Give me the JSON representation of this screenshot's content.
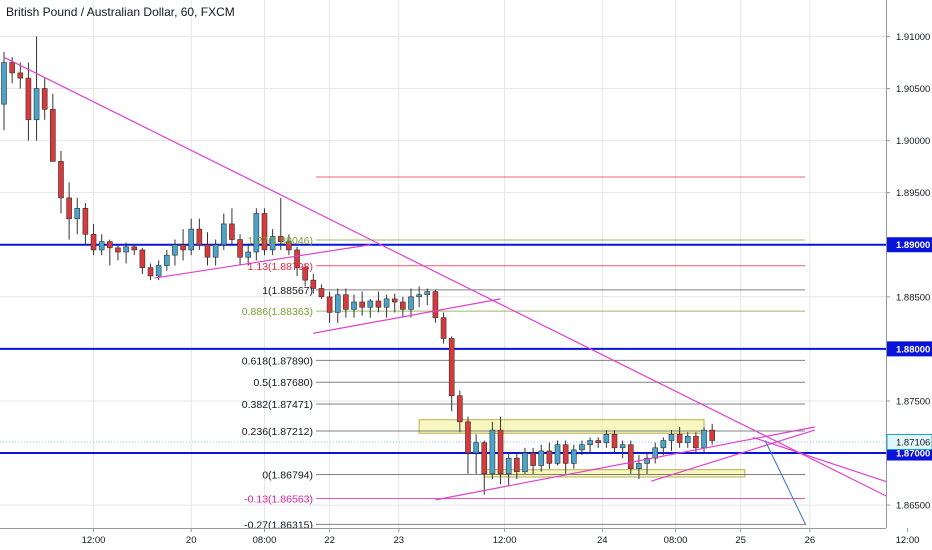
{
  "chart_data": {
    "type": "candlestick",
    "title": "British Pound / Australian Dollar, 60, FXCM",
    "colors": {
      "up": "#4aa3c8",
      "down": "#d9393b",
      "trendline": "#e040d0",
      "level": "#0a14d8",
      "grid": "#e6e6e6",
      "fib_line": "#555555",
      "fib_ext_green": "#7ba233",
      "fib_ext_red": "#e8253f",
      "fib_neg": "#e020a0",
      "zone": "#f3f08a",
      "projection": "#3a6fd8",
      "current_price": "#19a5c2"
    },
    "y_axis": {
      "ylim": [
        1.8628,
        1.9135
      ],
      "ticks": [
        {
          "value": 1.91,
          "label": "1.91000"
        },
        {
          "value": 1.905,
          "label": "1.90500"
        },
        {
          "value": 1.9,
          "label": "1.90000"
        },
        {
          "value": 1.895,
          "label": "1.89500"
        },
        {
          "value": 1.885,
          "label": "1.88500"
        },
        {
          "value": 1.875,
          "label": "1.87500"
        },
        {
          "value": 1.865,
          "label": "1.86500"
        }
      ],
      "highlighted": [
        {
          "value": 1.89,
          "label": "1.89000"
        },
        {
          "value": 1.88,
          "label": "1.88000"
        },
        {
          "value": 1.87,
          "label": "1.87000"
        }
      ],
      "current_price": {
        "value": 1.87106,
        "label": "1.87106"
      }
    },
    "x_axis": {
      "ticks": [
        {
          "bar": 11,
          "label": "12:00"
        },
        {
          "bar": 23,
          "label": "20"
        },
        {
          "bar": 32,
          "label": "08:00"
        },
        {
          "bar": 40,
          "label": "22"
        },
        {
          "bar": 48.5,
          "label": "23"
        },
        {
          "bar": 61.5,
          "label": "12:00"
        },
        {
          "bar": 73.5,
          "label": "24"
        },
        {
          "bar": 82.5,
          "label": "08:00"
        },
        {
          "bar": 90.5,
          "label": "25"
        },
        {
          "bar": 99,
          "label": "26"
        },
        {
          "bar": 111,
          "label": "12:00"
        }
      ]
    },
    "candles": [
      [
        1.9035,
        1.9085,
        1.901,
        1.9075
      ],
      [
        1.9075,
        1.908,
        1.9055,
        1.9065
      ],
      [
        1.9065,
        1.9075,
        1.905,
        1.906
      ],
      [
        1.906,
        1.9075,
        1.9,
        1.902
      ],
      [
        1.902,
        1.91,
        1.9,
        1.905
      ],
      [
        1.905,
        1.906,
        1.902,
        1.903
      ],
      [
        1.903,
        1.9045,
        1.898,
        1.898
      ],
      [
        1.898,
        1.899,
        1.893,
        1.8945
      ],
      [
        1.8945,
        1.896,
        1.8905,
        1.8925
      ],
      [
        1.8925,
        1.8945,
        1.891,
        1.8935
      ],
      [
        1.8935,
        1.894,
        1.89,
        1.891
      ],
      [
        1.891,
        1.892,
        1.889,
        1.8895
      ],
      [
        1.8895,
        1.891,
        1.889,
        1.8903
      ],
      [
        1.8903,
        1.8905,
        1.888,
        1.8897
      ],
      [
        1.8897,
        1.89,
        1.8885,
        1.8893
      ],
      [
        1.8893,
        1.8902,
        1.8882,
        1.8898
      ],
      [
        1.8898,
        1.89,
        1.889,
        1.8895
      ],
      [
        1.8895,
        1.8897,
        1.8872,
        1.8878
      ],
      [
        1.8878,
        1.8882,
        1.8866,
        1.887
      ],
      [
        1.887,
        1.8885,
        1.8866,
        1.888
      ],
      [
        1.888,
        1.8895,
        1.8875,
        1.889
      ],
      [
        1.889,
        1.8905,
        1.888,
        1.89
      ],
      [
        1.89,
        1.8915,
        1.8885,
        1.8895
      ],
      [
        1.8895,
        1.8925,
        1.889,
        1.8915
      ],
      [
        1.8915,
        1.8925,
        1.8895,
        1.89
      ],
      [
        1.89,
        1.8912,
        1.888,
        1.8888
      ],
      [
        1.8888,
        1.8905,
        1.888,
        1.89
      ],
      [
        1.89,
        1.893,
        1.8895,
        1.892
      ],
      [
        1.892,
        1.8935,
        1.89,
        1.8905
      ],
      [
        1.8905,
        1.891,
        1.888,
        1.8888
      ],
      [
        1.8888,
        1.89,
        1.888,
        1.8893
      ],
      [
        1.8893,
        1.8935,
        1.8885,
        1.893
      ],
      [
        1.893,
        1.8935,
        1.889,
        1.8895
      ],
      [
        1.8895,
        1.8915,
        1.889,
        1.8908
      ],
      [
        1.8908,
        1.8945,
        1.8895,
        1.8903
      ],
      [
        1.8903,
        1.891,
        1.889,
        1.8895
      ],
      [
        1.8895,
        1.8898,
        1.887,
        1.8878
      ],
      [
        1.8878,
        1.8882,
        1.886,
        1.8866
      ],
      [
        1.8866,
        1.8872,
        1.8853,
        1.8858
      ],
      [
        1.8858,
        1.8862,
        1.8848,
        1.885
      ],
      [
        1.885,
        1.8855,
        1.8825,
        1.8835
      ],
      [
        1.8835,
        1.8858,
        1.8825,
        1.8852
      ],
      [
        1.8852,
        1.8858,
        1.883,
        1.8838
      ],
      [
        1.8838,
        1.8852,
        1.883,
        1.8845
      ],
      [
        1.8845,
        1.8855,
        1.8832,
        1.884
      ],
      [
        1.884,
        1.8848,
        1.883,
        1.8846
      ],
      [
        1.8846,
        1.8855,
        1.8835,
        1.884
      ],
      [
        1.884,
        1.8852,
        1.883,
        1.8848
      ],
      [
        1.8848,
        1.8853,
        1.8835,
        1.8845
      ],
      [
        1.8845,
        1.885,
        1.883,
        1.8838
      ],
      [
        1.8838,
        1.8858,
        1.883,
        1.885
      ],
      [
        1.885,
        1.886,
        1.884,
        1.8852
      ],
      [
        1.8852,
        1.8858,
        1.8842,
        1.8855
      ],
      [
        1.8855,
        1.8857,
        1.8825,
        1.883
      ],
      [
        1.883,
        1.8835,
        1.8805,
        1.881
      ],
      [
        1.881,
        1.8812,
        1.874,
        1.8755
      ],
      [
        1.8755,
        1.876,
        1.872,
        1.873
      ],
      [
        1.873,
        1.8735,
        1.868,
        1.87
      ],
      [
        1.87,
        1.8718,
        1.868,
        1.871
      ],
      [
        1.871,
        1.8712,
        1.866,
        1.868
      ],
      [
        1.868,
        1.873,
        1.8675,
        1.8722
      ],
      [
        1.8722,
        1.8735,
        1.867,
        1.868
      ],
      [
        1.868,
        1.87,
        1.8668,
        1.8695
      ],
      [
        1.8695,
        1.87,
        1.8675,
        1.8682
      ],
      [
        1.8682,
        1.8705,
        1.868,
        1.87
      ],
      [
        1.87,
        1.8705,
        1.868,
        1.8688
      ],
      [
        1.8688,
        1.8708,
        1.8682,
        1.8702
      ],
      [
        1.8702,
        1.871,
        1.8685,
        1.869
      ],
      [
        1.869,
        1.8712,
        1.8688,
        1.8708
      ],
      [
        1.8708,
        1.8712,
        1.868,
        1.869
      ],
      [
        1.869,
        1.8708,
        1.8685,
        1.8703
      ],
      [
        1.8703,
        1.8712,
        1.8698,
        1.8708
      ],
      [
        1.8708,
        1.8715,
        1.87,
        1.8712
      ],
      [
        1.8712,
        1.8715,
        1.8705,
        1.871
      ],
      [
        1.871,
        1.8722,
        1.8705,
        1.8718
      ],
      [
        1.8718,
        1.8722,
        1.87,
        1.8705
      ],
      [
        1.8705,
        1.8712,
        1.8695,
        1.8708
      ],
      [
        1.8708,
        1.8712,
        1.868,
        1.8685
      ],
      [
        1.8685,
        1.8698,
        1.8675,
        1.869
      ],
      [
        1.869,
        1.87,
        1.868,
        1.8695
      ],
      [
        1.8695,
        1.871,
        1.869,
        1.8705
      ],
      [
        1.8705,
        1.8715,
        1.8698,
        1.8712
      ],
      [
        1.8712,
        1.8722,
        1.8702,
        1.8718
      ],
      [
        1.8718,
        1.8725,
        1.8705,
        1.871
      ],
      [
        1.871,
        1.872,
        1.8705,
        1.8716
      ],
      [
        1.8716,
        1.872,
        1.87,
        1.8705
      ],
      [
        1.8705,
        1.8725,
        1.87,
        1.8722
      ],
      [
        1.8722,
        1.8728,
        1.8708,
        1.8712
      ]
    ],
    "fib_levels": [
      {
        "label": "1.27(1.89046)",
        "value": 1.89046,
        "color": "#7ba233"
      },
      {
        "label": "1.13(1.88798)",
        "value": 1.88798,
        "color": "#e8253f"
      },
      {
        "label": "1(1.88567)",
        "value": 1.88567,
        "color": "#555555"
      },
      {
        "label": "0.886(1.88363)",
        "value": 1.88363,
        "color": "#7ba233"
      },
      {
        "label": "0.618(1.87890)",
        "value": 1.8789,
        "color": "#555555"
      },
      {
        "label": "0.5(1.87680)",
        "value": 1.8768,
        "color": "#555555"
      },
      {
        "label": "0.382(1.87471)",
        "value": 1.87471,
        "color": "#555555"
      },
      {
        "label": "0.236(1.87212)",
        "value": 1.87212,
        "color": "#555555"
      },
      {
        "label": "0(1.86794)",
        "value": 1.86794,
        "color": "#555555"
      },
      {
        "label": "-0.13(1.86563)",
        "value": 1.86563,
        "color": "#e020a0"
      },
      {
        "label": "-0.27(1.86315)",
        "value": 1.86315,
        "color": "#555555"
      }
    ],
    "extra_levels": [
      {
        "value": 1.8965,
        "color": "#e8253f"
      }
    ],
    "horizontal_levels": [
      1.89,
      1.88,
      1.87
    ],
    "zones": [
      {
        "bar_start": 51,
        "bar_end": 86,
        "top": 1.8732,
        "bottom": 1.8719
      },
      {
        "bar_start": 59,
        "bar_end": 91,
        "top": 1.8684,
        "bottom": 1.8677
      }
    ],
    "trendlines": [
      {
        "x1": 0,
        "y1": 1.908,
        "x2": 115,
        "y2": 1.8633
      },
      {
        "x1": 18.5,
        "y1": 1.8868,
        "x2": 45,
        "y2": 1.89
      },
      {
        "x1": 38,
        "y1": 1.8815,
        "x2": 61,
        "y2": 1.8848
      },
      {
        "x1": 53,
        "y1": 1.8655,
        "x2": 99.6,
        "y2": 1.8725
      },
      {
        "x1": 79.5,
        "y1": 1.8673,
        "x2": 99.6,
        "y2": 1.8722
      },
      {
        "x1": 92,
        "y1": 1.8715,
        "x2": 114,
        "y2": 1.8658
      }
    ],
    "projection": {
      "x1": 93.5,
      "y1": 1.8712,
      "x2": 98.5,
      "y2": 1.8631
    }
  }
}
